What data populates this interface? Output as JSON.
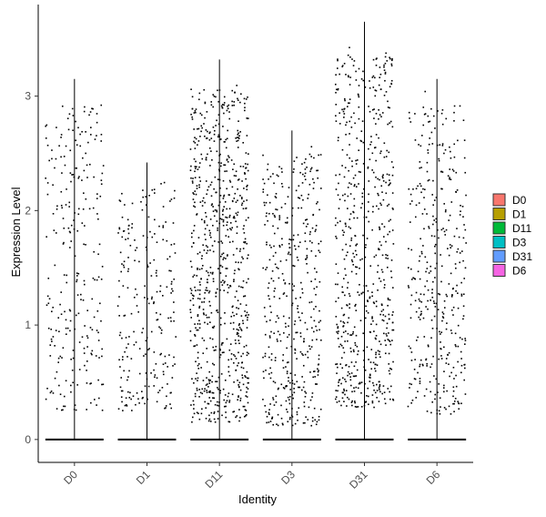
{
  "chart_data": {
    "type": "scatter",
    "subtype": "violin-jitter",
    "title": "",
    "xlabel": "Identity",
    "ylabel": "Expression Level",
    "categories": [
      "D0",
      "D1",
      "D11",
      "D3",
      "D31",
      "D6"
    ],
    "ylim": [
      -0.2,
      3.8
    ],
    "yticks": [
      0,
      1,
      2,
      3
    ],
    "grid": false,
    "legend": {
      "placement": "right",
      "entries": [
        {
          "name": "D0",
          "color": "#F8766D"
        },
        {
          "name": "D1",
          "color": "#B79F00"
        },
        {
          "name": "D11",
          "color": "#00BA38"
        },
        {
          "name": "D3",
          "color": "#00BFC4"
        },
        {
          "name": "D31",
          "color": "#619CFF"
        },
        {
          "name": "D6",
          "color": "#F564E3"
        }
      ]
    },
    "series": [
      {
        "category": "D0",
        "max": 3.15,
        "nonzero_count": 250,
        "value_range": [
          0.25,
          3.15
        ]
      },
      {
        "category": "D1",
        "max": 2.42,
        "nonzero_count": 230,
        "value_range": [
          0.25,
          2.42
        ]
      },
      {
        "category": "D11",
        "max": 3.32,
        "nonzero_count": 750,
        "value_range": [
          0.15,
          3.32
        ]
      },
      {
        "category": "D3",
        "max": 2.7,
        "nonzero_count": 420,
        "value_range": [
          0.12,
          2.7
        ]
      },
      {
        "category": "D31",
        "max": 3.65,
        "nonzero_count": 620,
        "value_range": [
          0.28,
          3.65
        ]
      },
      {
        "category": "D6",
        "max": 3.15,
        "nonzero_count": 380,
        "value_range": [
          0.22,
          3.15
        ]
      }
    ],
    "zero_baseline_value": 0
  }
}
